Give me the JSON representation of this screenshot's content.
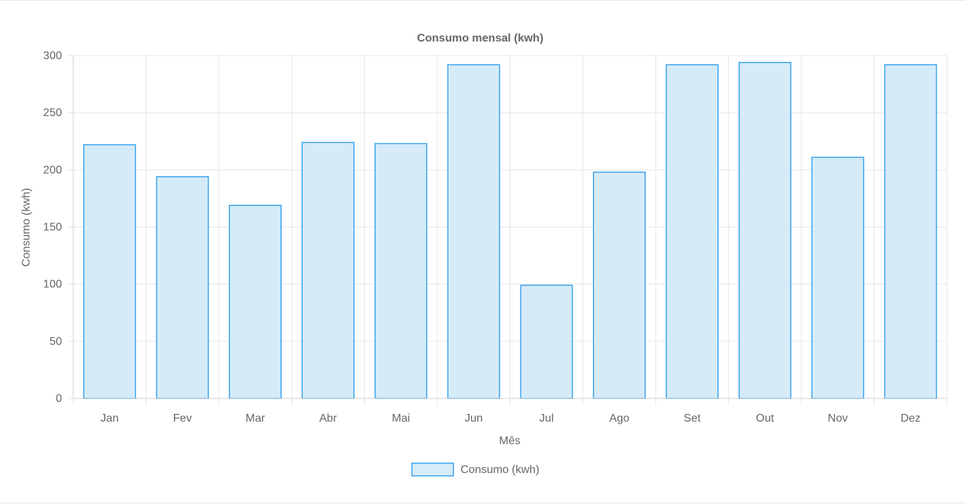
{
  "chart_data": {
    "type": "bar",
    "title": "Consumo mensal (kwh)",
    "xlabel": "Mês",
    "ylabel": "Consumo (kwh)",
    "categories": [
      "Jan",
      "Fev",
      "Mar",
      "Abr",
      "Mai",
      "Jun",
      "Jul",
      "Ago",
      "Set",
      "Out",
      "Nov",
      "Dez"
    ],
    "series": [
      {
        "name": "Consumo (kwh)",
        "values": [
          222,
          194,
          169,
          224,
          223,
          292,
          99,
          198,
          292,
          294,
          211,
          292
        ]
      }
    ],
    "ylim": [
      0,
      300
    ],
    "yticks": [
      0,
      50,
      100,
      150,
      200,
      250,
      300
    ],
    "grid": true,
    "legend": "bottom-center",
    "colors": {
      "bar_fill": "#d6ebf8",
      "bar_border": "#36a2eb",
      "grid": "#e5e5e5",
      "text": "#666666"
    }
  }
}
